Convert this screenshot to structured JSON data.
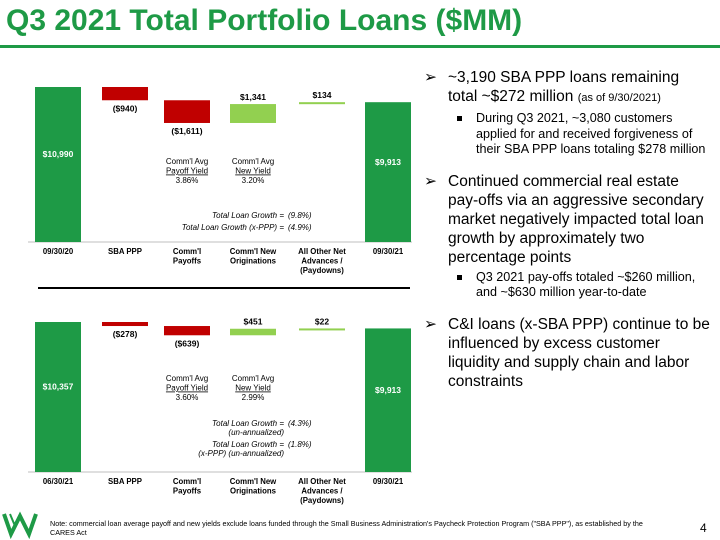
{
  "title": "Q3 2021 Total Portfolio Loans ($MM)",
  "chart_data": [
    {
      "type": "bar",
      "subtype": "waterfall",
      "categories": [
        "09/30/20",
        "SBA PPP",
        "Comm'l Payoffs",
        "Comm'l New Originations",
        "All Other Net Advances / (Paydowns)",
        "09/30/21"
      ],
      "values": [
        10990,
        -940,
        -1611,
        1341,
        134,
        9913
      ],
      "data_labels": [
        "$10,990",
        "($940)",
        "($1,611)",
        "$1,341",
        "$134",
        "$9,913"
      ],
      "annotations": [
        {
          "lines": [
            "Comm'l Avg",
            "Payoff Yield",
            "3.86%"
          ]
        },
        {
          "lines": [
            "Comm'l Avg",
            "New Yield",
            "3.20%"
          ]
        },
        {
          "label": "Total Loan Growth =",
          "value": "(9.8%)"
        },
        {
          "label": "Total Loan Growth (x-PPP) =",
          "value": "(4.9%)"
        }
      ]
    },
    {
      "type": "bar",
      "subtype": "waterfall",
      "categories": [
        "06/30/21",
        "SBA PPP",
        "Comm'l Payoffs",
        "Comm'l New Originations",
        "All Other Net Advances / (Paydowns)",
        "09/30/21"
      ],
      "values": [
        10357,
        -278,
        -639,
        451,
        22,
        9913
      ],
      "data_labels": [
        "$10,357",
        "($278)",
        "($639)",
        "$451",
        "$22",
        "$9,913"
      ],
      "annotations": [
        {
          "lines": [
            "Comm'l Avg",
            "Payoff Yield",
            "3.60%"
          ]
        },
        {
          "lines": [
            "Comm'l Avg",
            "New Yield",
            "2.99%"
          ]
        },
        {
          "label": "Total Loan Growth =",
          "label2": "(un-annualized)",
          "value": "(4.3%)"
        },
        {
          "label": "Total Loan Growth =",
          "label2": "(x-PPP) (un-annualized)",
          "value": "(1.8%)"
        }
      ]
    }
  ],
  "bullets": [
    {
      "text": "~3,190 SBA PPP loans remaining total ~$272 million",
      "small": "(as of 9/30/2021)",
      "subs": [
        "During Q3 2021, ~3,080 customers applied for and received forgiveness of their SBA PPP loans totaling $278 million"
      ]
    },
    {
      "text": "Continued commercial real estate pay-offs via an aggressive secondary market negatively impacted total loan growth by approximately two percentage points",
      "subs": [
        "Q3 2021 pay-offs totaled ~$260 million, and ~$630 million year-to-date"
      ]
    },
    {
      "text": "C&I loans (x-SBA PPP) continue to be influenced by excess customer liquidity and supply chain and labor constraints",
      "subs": []
    }
  ],
  "footer_note": "Note: commercial loan average payoff and new yields exclude loans funded through the Small Business Administration's Paycheck Protection Program (\"SBA PPP\"), as established by the CARES Act",
  "page_number": "4",
  "colors": {
    "title": "#1e9a46",
    "positive": "#1e9a46",
    "negative": "#c00000",
    "increase": "#92d050"
  },
  "icons": {
    "marker": "chevron-arrow-icon",
    "logo": "bank-logo-icon"
  }
}
